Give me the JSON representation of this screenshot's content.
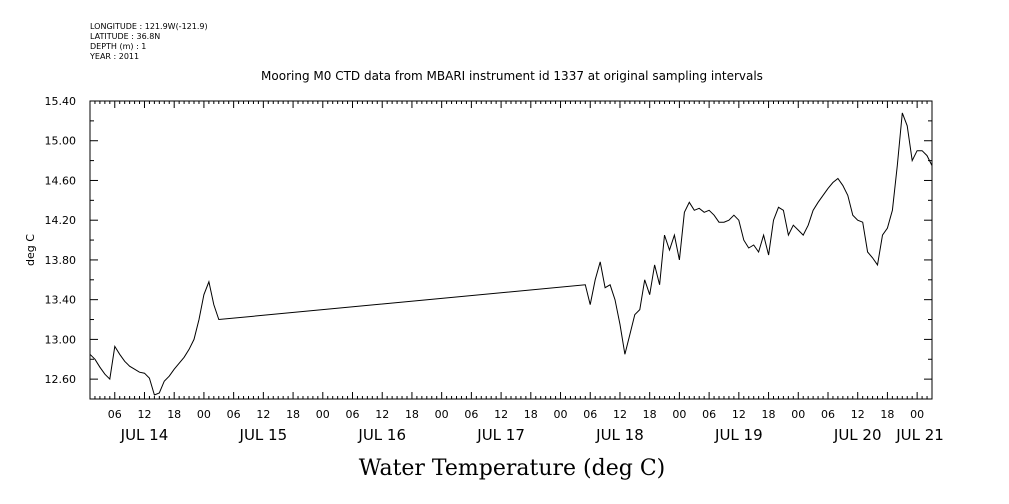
{
  "header": {
    "longitude": "LONGITUDE : 121.9W(-121.9)",
    "latitude": "LATITUDE : 36.8N",
    "depth": "DEPTH (m) : 1",
    "year": "YEAR : 2011"
  },
  "chart_data": {
    "type": "line",
    "title": "Mooring M0 CTD data from MBARI instrument id 1337 at original sampling intervals",
    "xlabel": "Water Temperature (deg C)",
    "ylabel": "deg C",
    "ylim": [
      12.4,
      15.4
    ],
    "y_ticks": [
      "12.60",
      "13.00",
      "13.40",
      "13.80",
      "14.20",
      "14.60",
      "15.00",
      "15.40"
    ],
    "xlim_hours": [
      0,
      170
    ],
    "hour_tick_labels": [
      "06",
      "12",
      "18",
      "00",
      "06",
      "12",
      "18",
      "00",
      "06",
      "12",
      "18",
      "00",
      "06",
      "12",
      "18",
      "00",
      "06",
      "12",
      "18",
      "00",
      "06",
      "12",
      "18",
      "00",
      "06",
      "12",
      "18",
      "00"
    ],
    "day_labels": [
      "JUL 14",
      "JUL 15",
      "JUL 16",
      "JUL 17",
      "JUL 18",
      "JUL 19",
      "JUL 20",
      "JUL 21"
    ],
    "series": [
      {
        "values": [
          [
            0,
            12.85
          ],
          [
            1,
            12.8
          ],
          [
            2,
            12.72
          ],
          [
            3,
            12.65
          ],
          [
            4,
            12.6
          ],
          [
            5,
            12.93
          ],
          [
            6,
            12.85
          ],
          [
            7,
            12.78
          ],
          [
            8,
            12.73
          ],
          [
            9,
            12.7
          ],
          [
            10,
            12.67
          ],
          [
            11,
            12.66
          ],
          [
            12,
            12.61
          ],
          [
            13,
            12.44
          ],
          [
            14,
            12.46
          ],
          [
            15,
            12.58
          ],
          [
            16,
            12.63
          ],
          [
            17,
            12.7
          ],
          [
            18,
            12.76
          ],
          [
            19,
            12.82
          ],
          [
            20,
            12.9
          ],
          [
            21,
            13.0
          ],
          [
            22,
            13.2
          ],
          [
            23,
            13.45
          ],
          [
            24,
            13.58
          ],
          [
            25,
            13.35
          ],
          [
            26,
            13.2
          ],
          [
            100,
            13.55
          ],
          [
            101,
            13.35
          ],
          [
            102,
            13.6
          ],
          [
            103,
            13.78
          ],
          [
            104,
            13.52
          ],
          [
            105,
            13.55
          ],
          [
            106,
            13.4
          ],
          [
            107,
            13.15
          ],
          [
            108,
            12.85
          ],
          [
            109,
            13.05
          ],
          [
            110,
            13.25
          ],
          [
            111,
            13.3
          ],
          [
            112,
            13.6
          ],
          [
            113,
            13.45
          ],
          [
            114,
            13.75
          ],
          [
            115,
            13.55
          ],
          [
            116,
            14.05
          ],
          [
            117,
            13.9
          ],
          [
            118,
            14.05
          ],
          [
            119,
            13.8
          ],
          [
            120,
            14.28
          ],
          [
            121,
            14.38
          ],
          [
            122,
            14.3
          ],
          [
            123,
            14.32
          ],
          [
            124,
            14.28
          ],
          [
            125,
            14.3
          ],
          [
            126,
            14.25
          ],
          [
            127,
            14.18
          ],
          [
            128,
            14.18
          ],
          [
            129,
            14.2
          ],
          [
            130,
            14.25
          ],
          [
            131,
            14.2
          ],
          [
            132,
            14.0
          ],
          [
            133,
            13.92
          ],
          [
            134,
            13.95
          ],
          [
            135,
            13.88
          ],
          [
            136,
            14.05
          ],
          [
            137,
            13.85
          ],
          [
            138,
            14.2
          ],
          [
            139,
            14.33
          ],
          [
            140,
            14.3
          ],
          [
            141,
            14.05
          ],
          [
            142,
            14.15
          ],
          [
            143,
            14.1
          ],
          [
            144,
            14.05
          ],
          [
            145,
            14.15
          ],
          [
            146,
            14.3
          ],
          [
            147,
            14.38
          ],
          [
            148,
            14.45
          ],
          [
            149,
            14.52
          ],
          [
            150,
            14.58
          ],
          [
            151,
            14.62
          ],
          [
            152,
            14.55
          ],
          [
            153,
            14.45
          ],
          [
            154,
            14.25
          ],
          [
            155,
            14.2
          ],
          [
            156,
            14.18
          ],
          [
            157,
            13.88
          ],
          [
            158,
            13.82
          ],
          [
            159,
            13.75
          ],
          [
            160,
            14.05
          ],
          [
            161,
            14.12
          ],
          [
            162,
            14.3
          ],
          [
            163,
            14.75
          ],
          [
            164,
            15.28
          ],
          [
            165,
            15.15
          ],
          [
            166,
            14.8
          ],
          [
            167,
            14.9
          ],
          [
            168,
            14.9
          ],
          [
            169,
            14.85
          ],
          [
            170,
            14.75
          ]
        ]
      }
    ]
  }
}
